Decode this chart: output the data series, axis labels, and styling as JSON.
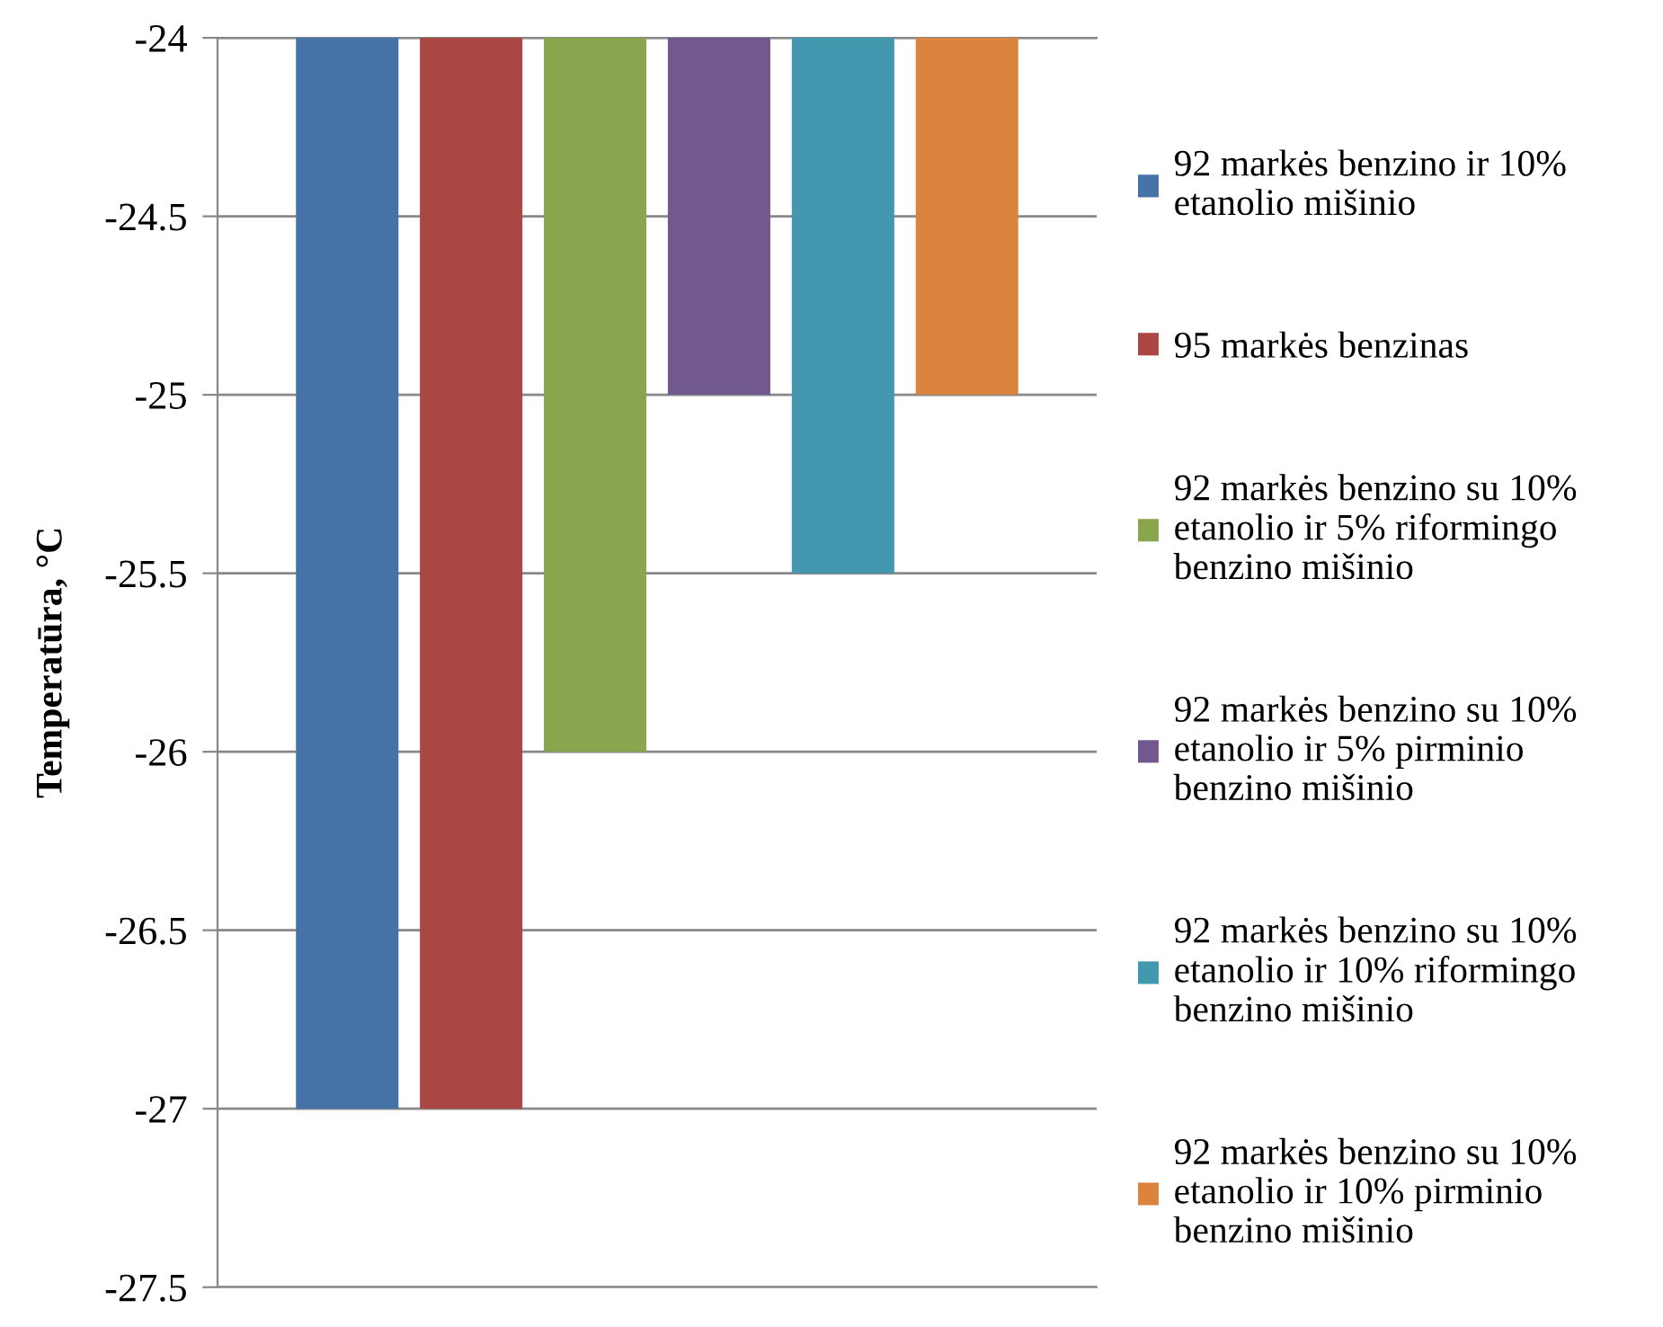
{
  "chart_data": {
    "type": "bar",
    "ylabel": "Temperatūra, °C",
    "categories": [
      null
    ],
    "series": [
      {
        "name": "92 markės benzino ir 10% etanolio mišinio",
        "color": "#4572a7",
        "values": [
          -27
        ]
      },
      {
        "name": "95 markės benzinas",
        "color": "#aa4643",
        "values": [
          -27
        ]
      },
      {
        "name": "92 markės benzino su 10% etanolio ir 5% riformingo benzino mišinio",
        "color": "#89a54e",
        "values": [
          -26
        ]
      },
      {
        "name": "92 markės benzino su 10% etanolio ir 5% pirminio benzino mišinio",
        "color": "#71588f",
        "values": [
          -25
        ]
      },
      {
        "name": "92 markės benzino su 10% etanolio ir 10% riformingo benzino mišinio",
        "color": "#4198af",
        "values": [
          -25.5
        ]
      },
      {
        "name": "92 markės benzino su 10% etanolio ir 10% pirminio benzino mišinio",
        "color": "#db843d",
        "values": [
          -25
        ]
      }
    ],
    "ylim": [
      -27.5,
      -24
    ],
    "yticks": [
      -27.5,
      -27,
      -26.5,
      -26,
      -25.5,
      -25,
      -24.5,
      -24
    ],
    "grid": "y",
    "legend": "right",
    "tick_labels": "y"
  }
}
